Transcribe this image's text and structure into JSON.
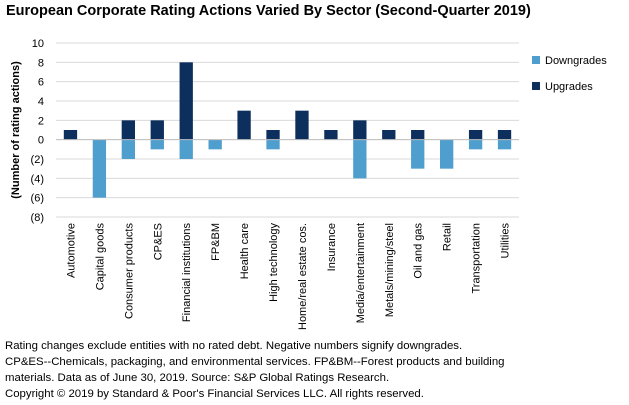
{
  "chart_data": {
    "type": "bar",
    "title": "European Corporate Rating Actions Varied By Sector (Second-Quarter 2019)",
    "ylabel": "(Number of rating actions)",
    "xlabel": "",
    "ylim": [
      -8,
      10
    ],
    "yticks": [
      "10",
      "8",
      "6",
      "4",
      "2",
      "0",
      "(2)",
      "(4)",
      "(6)",
      "(8)"
    ],
    "grid": true,
    "legend_position": "right",
    "categories": [
      "Automotive",
      "Capital goods",
      "Consumer products",
      "CP&ES",
      "Financial institutions",
      "FP&BM",
      "Health care",
      "High technology",
      "Home/real estate cos.",
      "Insurance",
      "Media/entertainment",
      "Metals/mining/steel",
      "Oil and gas",
      "Retail",
      "Transportation",
      "Utilities"
    ],
    "series": [
      {
        "name": "Downgrades",
        "color": "#4f9fce",
        "values": [
          0,
          -6,
          -2,
          -1,
          -2,
          -1,
          0,
          -1,
          0,
          0,
          -4,
          0,
          -3,
          -3,
          -1,
          -1
        ]
      },
      {
        "name": "Upgrades",
        "color": "#0d2f5e",
        "values": [
          1,
          0,
          2,
          2,
          8,
          0,
          3,
          1,
          3,
          1,
          2,
          1,
          1,
          0,
          1,
          1
        ]
      }
    ]
  },
  "footnotes": [
    "Rating changes exclude entities with no rated debt. Negative numbers signify downgrades.",
    "CP&ES--Chemicals, packaging, and environmental services. FP&BM--Forest products and building",
    "materials. Data as of June 30, 2019. Source: S&P Global Ratings Research.",
    "Copyright © 2019 by Standard & Poor's Financial Services LLC. All rights reserved."
  ]
}
